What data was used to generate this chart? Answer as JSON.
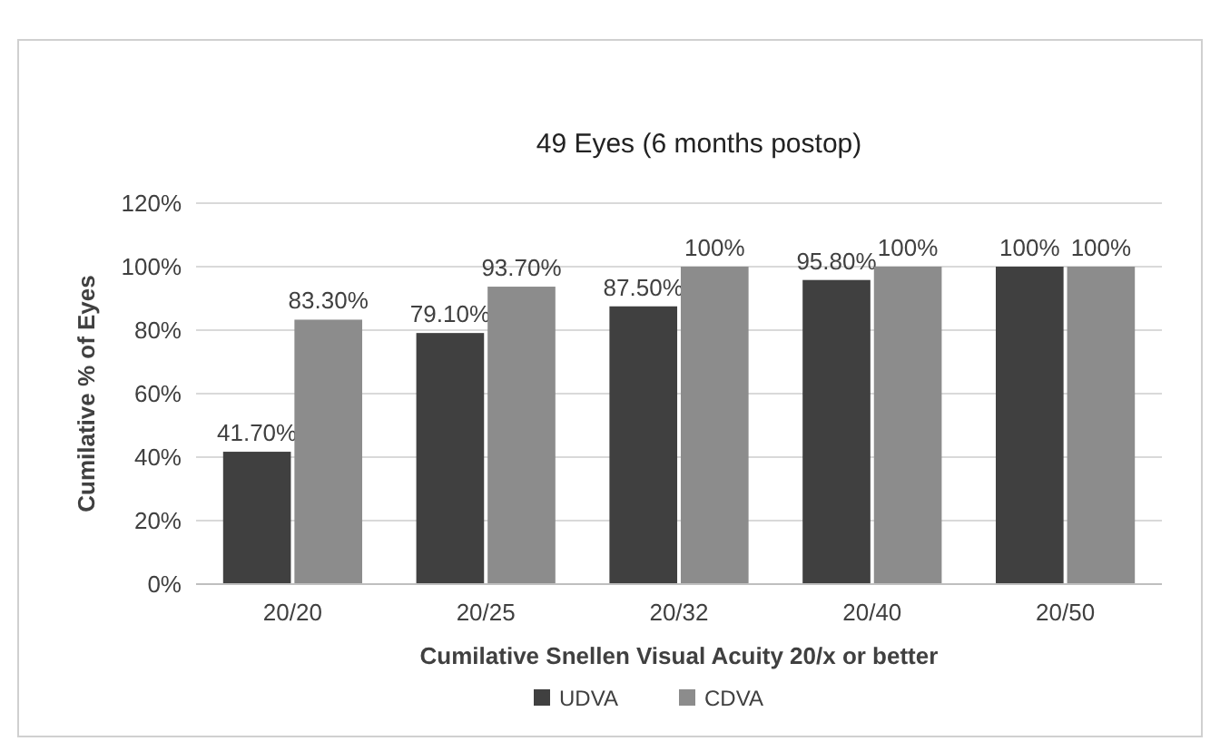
{
  "chart_data": {
    "type": "bar",
    "title": "49 Eyes (6 months postop)",
    "xlabel": "Cumilative Snellen Visual Acuity 20/x or better",
    "ylabel": "Cumilative % of Eyes",
    "categories": [
      "20/20",
      "20/25",
      "20/32",
      "20/40",
      "20/50"
    ],
    "series": [
      {
        "name": "UDVA",
        "color": "#404040",
        "values": [
          41.7,
          79.1,
          87.5,
          95.8,
          100
        ],
        "value_labels": [
          "41.70%",
          "79.10%",
          "87.50%",
          "95.80%",
          "100%"
        ]
      },
      {
        "name": "CDVA",
        "color": "#8c8c8c",
        "values": [
          83.3,
          93.7,
          100,
          100,
          100
        ],
        "value_labels": [
          "83.30%",
          "93.70%",
          "100%",
          "100%",
          "100%"
        ]
      }
    ],
    "ylim": [
      0,
      120
    ],
    "yticks": [
      {
        "value": 0,
        "label": "0%"
      },
      {
        "value": 20,
        "label": "20%"
      },
      {
        "value": 40,
        "label": "40%"
      },
      {
        "value": 60,
        "label": "60%"
      },
      {
        "value": 80,
        "label": "80%"
      },
      {
        "value": 100,
        "label": "100%"
      },
      {
        "value": 120,
        "label": "120%"
      }
    ],
    "grid": "y",
    "legend": "bottom"
  }
}
